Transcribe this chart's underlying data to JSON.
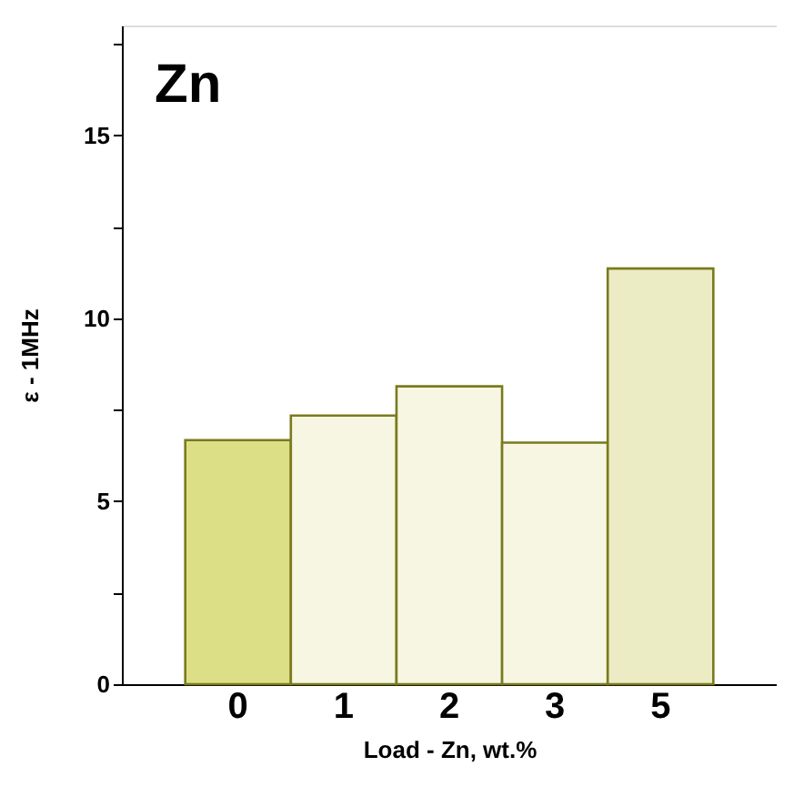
{
  "chart_data": {
    "type": "bar",
    "categories": [
      "0",
      "1",
      "2",
      "3",
      "5"
    ],
    "values": [
      6.67,
      7.34,
      8.14,
      6.6,
      11.36
    ],
    "colors": [
      "#dcdf85",
      "#f6f6e2",
      "#f6f6e2",
      "#f6f6e2",
      "#ebebc4"
    ],
    "xlabel": "Load - Zn, wt.%",
    "ylabel": "ε - 1MHz",
    "annotations": [
      "Zn"
    ],
    "ylim": [
      0,
      18
    ],
    "yticks": [
      0,
      {
        "value": 2.5,
        "label": null
      },
      5,
      {
        "value": 7.5,
        "label": null
      },
      10,
      {
        "value": 12.5,
        "label": null
      },
      15,
      {
        "value": 17.5,
        "label": null
      }
    ],
    "grid": false
  }
}
